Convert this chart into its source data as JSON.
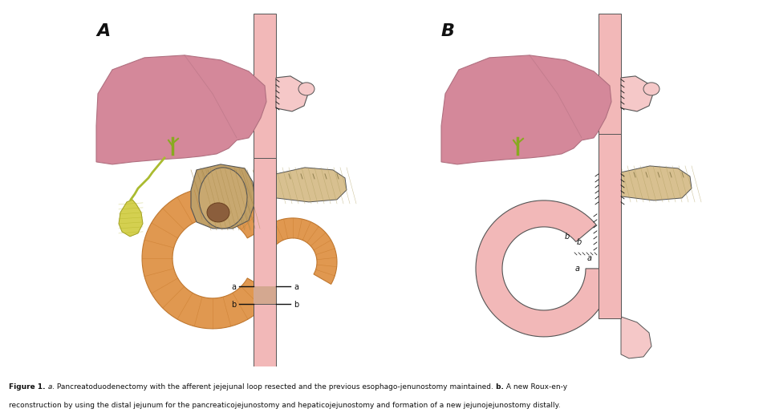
{
  "background_color": "#ffffff",
  "fig_width": 9.56,
  "fig_height": 5.15,
  "dpi": 100,
  "skin": "#f2b8b8",
  "skin_light": "#f5c8c8",
  "skin_dark": "#e8a0a0",
  "liver_color": "#d4889a",
  "liver_edge": "#b07080",
  "pancreas_color": "#c8a870",
  "pancreas_head_color": "#c0a068",
  "pancreas_tail_color": "#d8c090",
  "duodenum_color": "#e09850",
  "duodenum_edge": "#c07830",
  "gb_color": "#d4d050",
  "gb_edge": "#a0a020",
  "bile_color": "#88aa20",
  "dark_node": "#8B5e3c",
  "outline": "#555555",
  "black": "#111111",
  "caption_line1": "Figure 1.",
  "caption_a_italic": " a.",
  "caption_text1": " Pancreatoduodenectomy with the afferent jejejunal loop resected and the previous esophago-jenunostomy maintained.",
  "caption_b_italic": " b.",
  "caption_text2": " A new Roux-en-y reconstruction by using the distal jejunum for the pancreaticojejunostomy and hepaticojejunostomy and formation of a new jejunojejunostomy distally."
}
